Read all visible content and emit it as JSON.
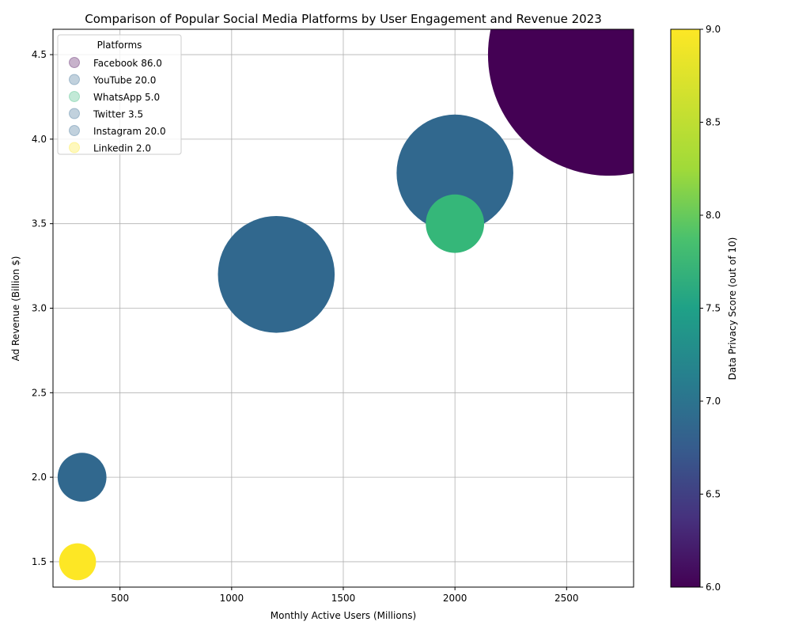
{
  "chart_data": {
    "type": "scatter",
    "title": "Comparison of Popular Social Media Platforms by User Engagement and Revenue 2023",
    "xlabel": "Monthly Active Users (Millions)",
    "ylabel": "Ad Revenue (Billion $)",
    "xlim": [
      200,
      2800
    ],
    "ylim": [
      1.35,
      4.65
    ],
    "xticks": [
      500,
      1000,
      1500,
      2000,
      2500
    ],
    "yticks": [
      1.5,
      2.0,
      2.5,
      3.0,
      3.5,
      4.0,
      4.5
    ],
    "grid": true,
    "legend_title": "Platforms",
    "legend_position": "top-left",
    "size_encoding": "bubble area scales with the value shown next to each platform name in the legend",
    "color_encoding": "Data Privacy Score (viridis colormap)",
    "colorbar": {
      "label": "Data Privacy Score (out of 10)",
      "range": [
        6.0,
        9.0
      ],
      "ticks": [
        "6.0",
        "6.5",
        "7.0",
        "7.5",
        "8.0",
        "8.5",
        "9.0"
      ],
      "colormap": "viridis"
    },
    "series": [
      {
        "name": "Facebook",
        "size_value": "86.0",
        "x": 2690,
        "y": 4.5,
        "privacy_score": 6,
        "color": "#440154"
      },
      {
        "name": "YouTube",
        "size_value": "20.0",
        "x": 2000,
        "y": 3.8,
        "privacy_score": 7,
        "color": "#31688e"
      },
      {
        "name": "WhatsApp",
        "size_value": "5.0",
        "x": 2000,
        "y": 3.5,
        "privacy_score": 8,
        "color": "#35b779"
      },
      {
        "name": "Twitter",
        "size_value": "3.5",
        "x": 330,
        "y": 2.0,
        "privacy_score": 7,
        "color": "#31688e"
      },
      {
        "name": "Instagram",
        "size_value": "20.0",
        "x": 1200,
        "y": 3.2,
        "privacy_score": 7,
        "color": "#31688e"
      },
      {
        "name": "Linkedin",
        "size_value": "2.0",
        "x": 310,
        "y": 1.5,
        "privacy_score": 9,
        "color": "#fde725"
      }
    ]
  }
}
